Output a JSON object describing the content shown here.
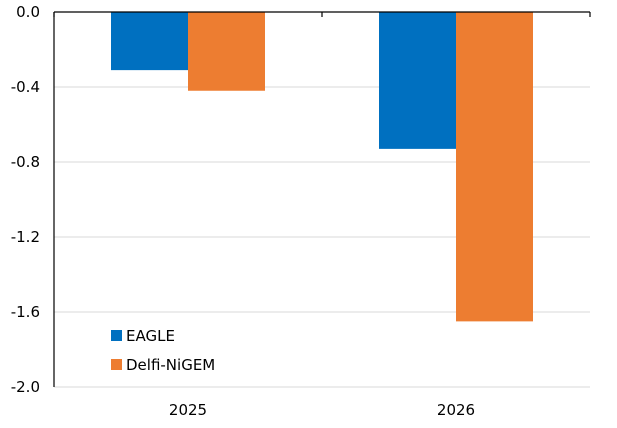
{
  "chart_data": {
    "type": "bar",
    "categories": [
      "2025",
      "2026"
    ],
    "series": [
      {
        "name": "EAGLE",
        "values": [
          -0.31,
          -0.73
        ],
        "color": "#0070c0"
      },
      {
        "name": "Delfi-NiGEM",
        "values": [
          -0.42,
          -1.65
        ],
        "color": "#ed7d31"
      }
    ],
    "y_ticks": [
      "0.0",
      "-0.4",
      "-0.8",
      "-1.2",
      "-1.6",
      "-2.0"
    ],
    "ylim": [
      -2.0,
      0.0
    ],
    "y_tick_values": [
      0.0,
      -0.4,
      -0.8,
      -1.2,
      -1.6,
      -2.0
    ],
    "grid": true,
    "legend_position": "bottom-left"
  }
}
